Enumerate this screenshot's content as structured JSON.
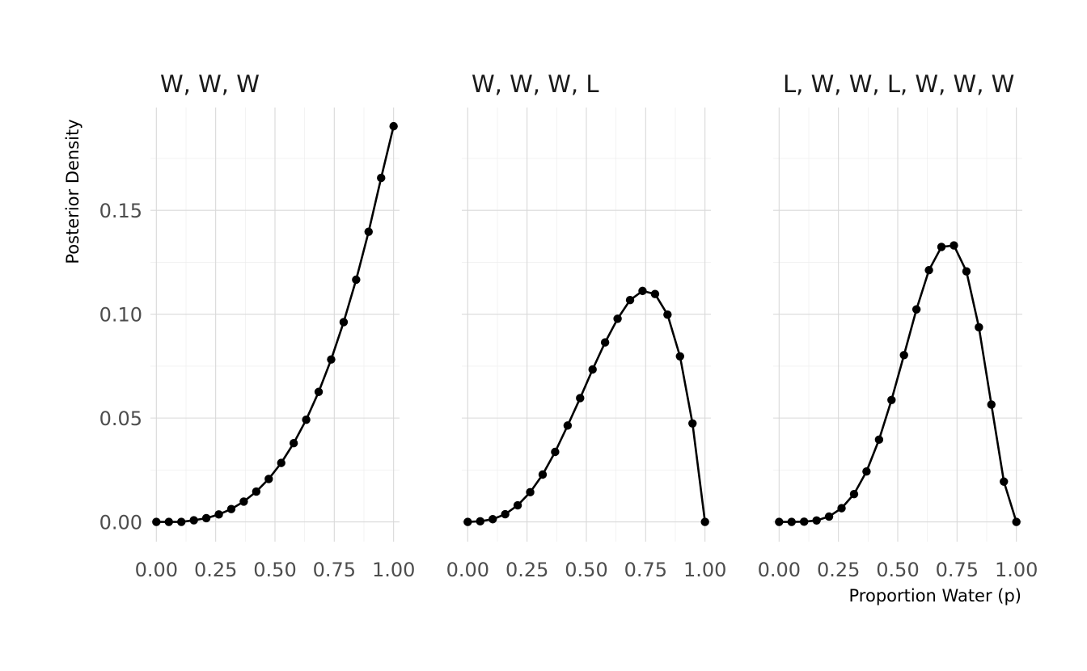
{
  "chart_data": {
    "type": "line",
    "ylabel": "Posterior Density",
    "xlabel": "Proportion Water (p)",
    "x_tick_labels": [
      "0.00",
      "0.25",
      "0.50",
      "0.75",
      "1.00"
    ],
    "y_tick_labels": [
      "0.00",
      "0.05",
      "0.10",
      "0.15"
    ],
    "xlim": [
      -0.025,
      1.025
    ],
    "ylim": [
      -0.0095,
      0.1995
    ],
    "grid": true,
    "legend": "none",
    "colors": {
      "line": "#000000",
      "point": "#000000",
      "grid": "#d9d9d9",
      "tick_text": "#4d4d4d"
    },
    "x": [
      0.0,
      0.0526,
      0.1053,
      0.1579,
      0.2105,
      0.2632,
      0.3158,
      0.3684,
      0.4211,
      0.4737,
      0.5263,
      0.5789,
      0.6316,
      0.6842,
      0.7368,
      0.7895,
      0.8421,
      0.8947,
      0.9474,
      1.0
    ],
    "panels": [
      {
        "title": "W, W, W",
        "series": [
          {
            "values": [
              0.0,
              0.0,
              0.0,
              0.0008,
              0.0018,
              0.0036,
              0.0062,
              0.0098,
              0.0146,
              0.0207,
              0.0284,
              0.0379,
              0.0492,
              0.0626,
              0.0782,
              0.0962,
              0.1166,
              0.1397,
              0.1656,
              0.1905
            ]
          }
        ]
      },
      {
        "title": "W, W, W, L",
        "series": [
          {
            "values": [
              0.0,
              0.0003,
              0.0013,
              0.0037,
              0.008,
              0.0143,
              0.0228,
              0.0337,
              0.0464,
              0.0596,
              0.0734,
              0.0864,
              0.0978,
              0.1068,
              0.1112,
              0.1097,
              0.0998,
              0.0797,
              0.0474,
              0.0
            ]
          }
        ]
      },
      {
        "title": "L, W, W, L, W, W, W",
        "series": [
          {
            "values": [
              0.0,
              0.0,
              0.0001,
              0.0007,
              0.0026,
              0.0066,
              0.0134,
              0.0243,
              0.0396,
              0.0587,
              0.0803,
              0.1023,
              0.1212,
              0.1324,
              0.1331,
              0.1206,
              0.0937,
              0.0565,
              0.0194,
              0.0
            ]
          }
        ]
      }
    ]
  }
}
